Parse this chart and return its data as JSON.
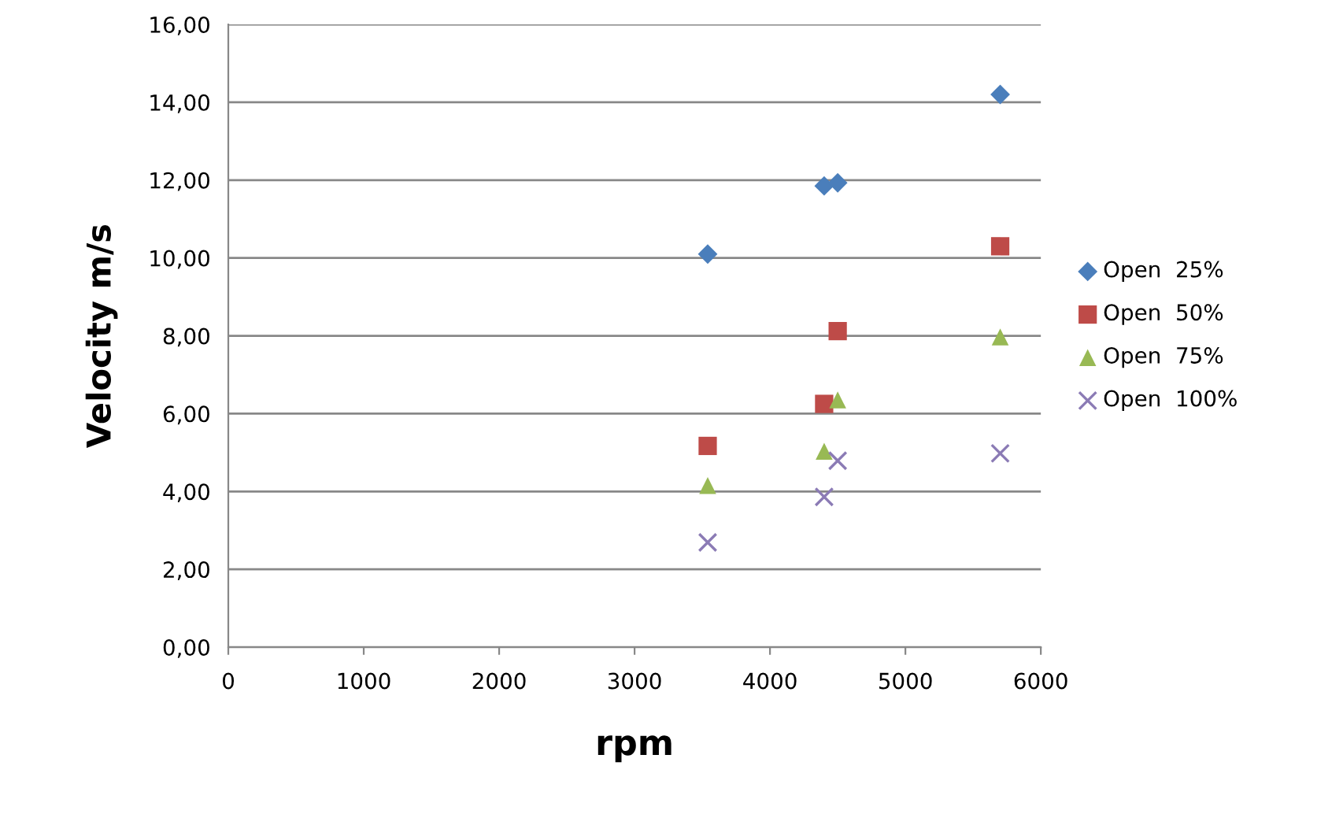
{
  "chart_data": {
    "type": "scatter",
    "xlabel": "rpm",
    "ylabel": "Velocity m/s",
    "xlim": [
      0,
      6000
    ],
    "xticks": [
      0,
      1000,
      2000,
      3000,
      4000,
      5000,
      6000
    ],
    "ylim": [
      0,
      16
    ],
    "yticks": [
      {
        "value": 0,
        "label": "0,00"
      },
      {
        "value": 2,
        "label": "2,00"
      },
      {
        "value": 4,
        "label": "4,00"
      },
      {
        "value": 6,
        "label": "6,00"
      },
      {
        "value": 8,
        "label": "8,00"
      },
      {
        "value": 10,
        "label": "10,00"
      },
      {
        "value": 12,
        "label": "12,00"
      },
      {
        "value": 14,
        "label": "14,00"
      },
      {
        "value": 16,
        "label": "16,00"
      }
    ],
    "grid": "y",
    "legend": "right",
    "series": [
      {
        "name": "Open  25%",
        "color": "#4a7ebb",
        "marker": "diamond",
        "x": [
          3540,
          4400,
          4500,
          5700
        ],
        "values": [
          10.1,
          11.85,
          11.93,
          14.2
        ]
      },
      {
        "name": "Open  50%",
        "color": "#be4b48",
        "marker": "square",
        "x": [
          3540,
          4400,
          4500,
          5700
        ],
        "values": [
          5.17,
          6.25,
          8.12,
          10.3
        ]
      },
      {
        "name": "Open  75%",
        "color": "#98b954",
        "marker": "triangle",
        "x": [
          3540,
          4400,
          4500,
          5700
        ],
        "values": [
          4.15,
          5.03,
          6.35,
          7.97
        ]
      },
      {
        "name": "Open  100%",
        "color": "#8b7bb5",
        "marker": "cross",
        "x": [
          3540,
          4400,
          4500,
          5700
        ],
        "values": [
          2.69,
          3.86,
          4.79,
          4.98
        ]
      }
    ]
  }
}
